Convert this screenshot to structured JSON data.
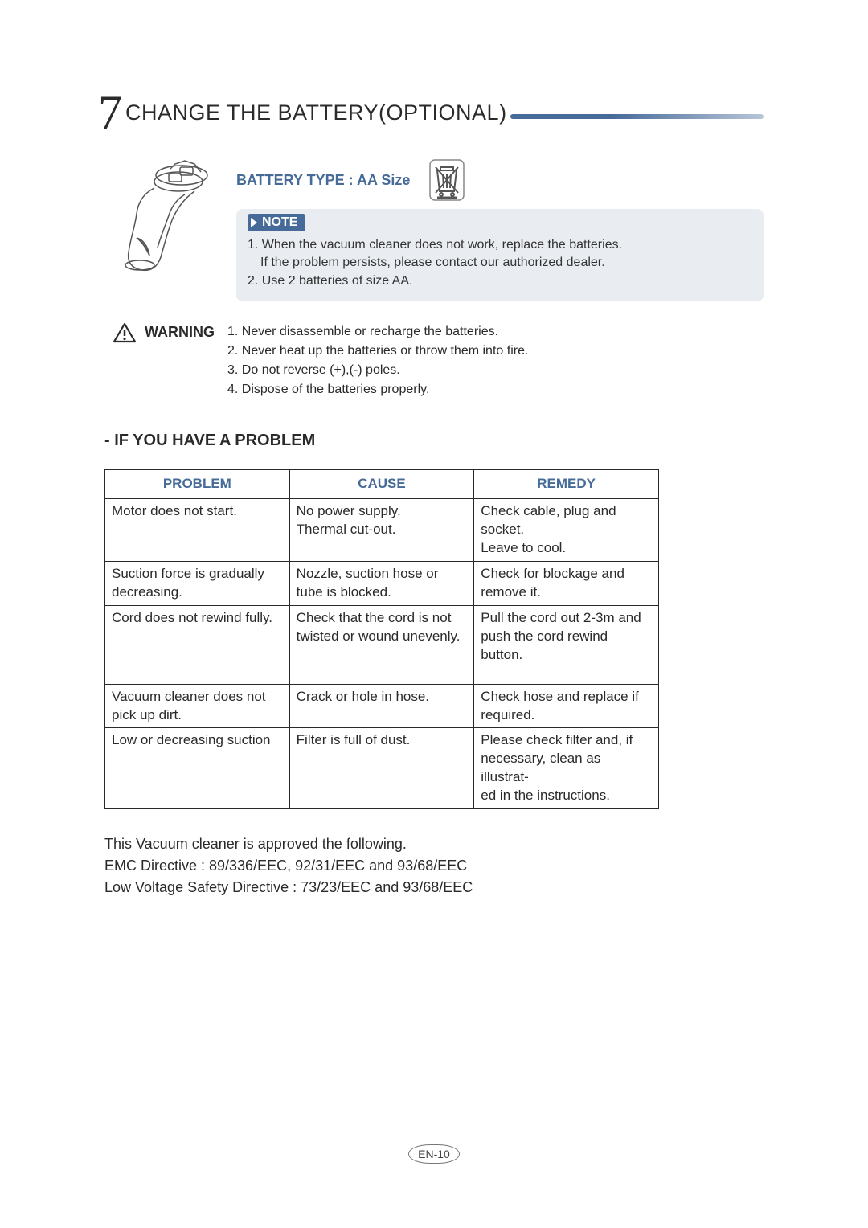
{
  "colors": {
    "accent": "#476b99",
    "text": "#2a2a2a",
    "note_bg": "#e9edf2",
    "white": "#ffffff",
    "border": "#2a2a2a"
  },
  "typography": {
    "body_fontsize": 17,
    "heading_fontsize": 27,
    "big_number_fontsize": 60
  },
  "section_number": "7",
  "section_title": "CHANGE THE BATTERY(OPTIONAL)",
  "battery_type": "BATTERY TYPE : AA Size",
  "note": {
    "label": "NOTE",
    "items": [
      "1. When the vacuum cleaner does not work, replace the batteries.",
      "If the problem persists, please contact our authorized dealer.",
      "2. Use 2 batteries of size AA."
    ]
  },
  "warning": {
    "label": "WARNING",
    "items": [
      "1. Never disassemble or recharge the batteries.",
      "2. Never heat up the batteries or throw them into fire.",
      "3. Do not reverse (+),(-) poles.",
      "4. Dispose of the batteries properly."
    ]
  },
  "problem_heading": "- IF YOU HAVE A PROBLEM",
  "table": {
    "columns": [
      "PROBLEM",
      "CAUSE",
      "REMEDY"
    ],
    "col_widths": [
      "230px",
      "230px",
      "230px"
    ],
    "rows": [
      {
        "problem": "Motor does not start.",
        "cause": "No power supply.\nThermal cut-out.",
        "remedy": "Check cable, plug and socket.\nLeave to cool."
      },
      {
        "problem": "Suction force is gradually decreasing.",
        "cause": "Nozzle, suction hose or tube is blocked.",
        "remedy": "Check for blockage and remove it."
      },
      {
        "problem": "Cord does not rewind fully.",
        "cause": "Check that the cord is not twisted or wound unevenly.",
        "remedy": "Pull the cord out 2-3m and push the cord rewind button.",
        "tall": true
      },
      {
        "problem": "Vacuum cleaner does not pick up dirt.",
        "cause": "Crack or hole in hose.",
        "remedy": "Check hose and replace if required."
      },
      {
        "problem": "Low or decreasing suction",
        "cause": "Filter is  full of dust.",
        "remedy": "Please check filter and, if necessary, clean as illustrat-\ned in the instructions."
      }
    ]
  },
  "approval": [
    "This Vacuum cleaner is approved the following.",
    "EMC Directive : 89/336/EEC, 92/31/EEC and 93/68/EEC",
    "Low Voltage Safety Directive : 73/23/EEC and 93/68/EEC"
  ],
  "page_number": "EN-10"
}
